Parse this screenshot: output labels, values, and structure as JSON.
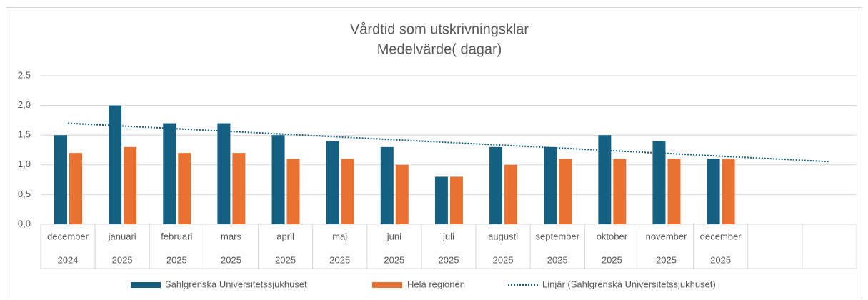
{
  "chart_data": {
    "type": "bar",
    "title": "Vårdtid som utskrivningsklar",
    "subtitle": "Medelvärde( dagar)",
    "categories": [
      "december",
      "januari",
      "februari",
      "mars",
      "april",
      "maj",
      "juni",
      "juli",
      "augusti",
      "september",
      "oktober",
      "november",
      "december",
      null,
      null
    ],
    "category_years": [
      "2024",
      "2025",
      "2025",
      "2025",
      "2025",
      "2025",
      "2025",
      "2025",
      "2025",
      "2025",
      "2025",
      "2025",
      "2025",
      null,
      null
    ],
    "series": [
      {
        "name": "Sahlgrenska Universitetssjukhuset",
        "color": "#156082",
        "values": [
          1.5,
          2.0,
          1.7,
          1.7,
          1.5,
          1.4,
          1.3,
          0.8,
          1.3,
          1.3,
          1.5,
          1.4,
          1.1,
          null,
          null
        ]
      },
      {
        "name": "Hela regionen",
        "color": "#e97132",
        "values": [
          1.2,
          1.3,
          1.2,
          1.2,
          1.1,
          1.1,
          1.0,
          0.8,
          1.0,
          1.1,
          1.1,
          1.1,
          1.1,
          null,
          null
        ]
      }
    ],
    "trendline": {
      "name": "Linjär (Sahlgrenska Universitetssjukhuset)",
      "color": "#156082",
      "series": 0,
      "forward": 2
    },
    "ylim": [
      0,
      2.5
    ],
    "yticks": [
      {
        "value": 0,
        "label": "0,0"
      },
      {
        "value": 0.5,
        "label": "0,5"
      },
      {
        "value": 1,
        "label": "1,0"
      },
      {
        "value": 1.5,
        "label": "1,5"
      },
      {
        "value": 2,
        "label": "2,0"
      },
      {
        "value": 2.5,
        "label": "2,5"
      }
    ],
    "grid": true
  }
}
